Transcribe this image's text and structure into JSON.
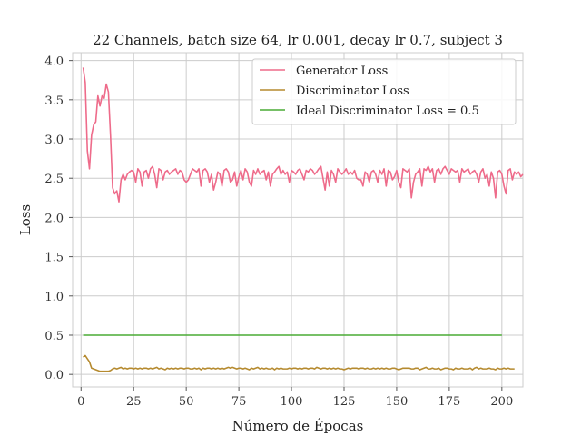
{
  "chart_data": {
    "type": "line",
    "title": "22 Channels, batch size 64, lr 0.001, decay lr 0.7, subject 3",
    "xlabel": "Número de Épocas",
    "ylabel": "Loss",
    "xlim": [
      -4,
      210
    ],
    "ylim": [
      -0.16,
      4.1
    ],
    "xticks": [
      0,
      25,
      50,
      75,
      100,
      125,
      150,
      175,
      200
    ],
    "yticks": [
      0.0,
      0.5,
      1.0,
      1.5,
      2.0,
      2.5,
      3.0,
      3.5,
      4.0
    ],
    "xtick_labels": [
      "0",
      "25",
      "50",
      "75",
      "100",
      "125",
      "150",
      "175",
      "200"
    ],
    "ytick_labels": [
      "0.0",
      "0.5",
      "1.0",
      "1.5",
      "2.0",
      "2.5",
      "3.0",
      "3.5",
      "4.0"
    ],
    "grid": true,
    "legend_position": "top-right",
    "series": [
      {
        "name": "Generator Loss",
        "color": "#ee6b8a",
        "x_start": 1,
        "values": [
          3.91,
          3.72,
          2.85,
          2.62,
          3.05,
          3.18,
          3.22,
          3.55,
          3.42,
          3.55,
          3.52,
          3.7,
          3.6,
          3.05,
          2.38,
          2.3,
          2.34,
          2.2,
          2.48,
          2.55,
          2.48,
          2.55,
          2.58,
          2.6,
          2.58,
          2.45,
          2.62,
          2.58,
          2.4,
          2.58,
          2.6,
          2.5,
          2.62,
          2.65,
          2.55,
          2.38,
          2.62,
          2.6,
          2.48,
          2.58,
          2.6,
          2.55,
          2.58,
          2.6,
          2.62,
          2.55,
          2.6,
          2.58,
          2.48,
          2.45,
          2.48,
          2.55,
          2.62,
          2.6,
          2.58,
          2.62,
          2.4,
          2.6,
          2.62,
          2.58,
          2.45,
          2.55,
          2.35,
          2.45,
          2.58,
          2.55,
          2.4,
          2.6,
          2.62,
          2.58,
          2.45,
          2.48,
          2.58,
          2.4,
          2.52,
          2.6,
          2.48,
          2.62,
          2.58,
          2.45,
          2.4,
          2.6,
          2.55,
          2.62,
          2.55,
          2.58,
          2.6,
          2.48,
          2.58,
          2.4,
          2.55,
          2.58,
          2.62,
          2.65,
          2.55,
          2.6,
          2.55,
          2.58,
          2.45,
          2.6,
          2.58,
          2.55,
          2.6,
          2.62,
          2.55,
          2.48,
          2.6,
          2.58,
          2.62,
          2.6,
          2.55,
          2.58,
          2.62,
          2.65,
          2.5,
          2.35,
          2.58,
          2.4,
          2.6,
          2.55,
          2.45,
          2.62,
          2.58,
          2.55,
          2.58,
          2.62,
          2.55,
          2.58,
          2.55,
          2.6,
          2.5,
          2.48,
          2.48,
          2.4,
          2.58,
          2.55,
          2.45,
          2.58,
          2.6,
          2.55,
          2.45,
          2.6,
          2.55,
          2.62,
          2.4,
          2.6,
          2.58,
          2.48,
          2.52,
          2.6,
          2.45,
          2.38,
          2.62,
          2.6,
          2.58,
          2.62,
          2.25,
          2.45,
          2.55,
          2.58,
          2.62,
          2.4,
          2.62,
          2.6,
          2.65,
          2.58,
          2.62,
          2.45,
          2.6,
          2.62,
          2.55,
          2.62,
          2.65,
          2.6,
          2.55,
          2.62,
          2.6,
          2.58,
          2.6,
          2.45,
          2.62,
          2.58,
          2.6,
          2.62,
          2.55,
          2.58,
          2.6,
          2.55,
          2.45,
          2.58,
          2.62,
          2.5,
          2.55,
          2.4,
          2.58,
          2.5,
          2.25,
          2.58,
          2.6,
          2.55,
          2.4,
          2.3,
          2.6,
          2.62,
          2.48,
          2.58,
          2.55,
          2.58,
          2.52,
          2.55
        ]
      },
      {
        "name": "Discriminator Loss",
        "color": "#b58a2f",
        "x_start": 1,
        "values": [
          0.22,
          0.24,
          0.2,
          0.16,
          0.08,
          0.07,
          0.06,
          0.05,
          0.04,
          0.04,
          0.04,
          0.04,
          0.04,
          0.05,
          0.07,
          0.08,
          0.07,
          0.08,
          0.09,
          0.07,
          0.08,
          0.07,
          0.08,
          0.08,
          0.07,
          0.08,
          0.07,
          0.08,
          0.07,
          0.08,
          0.08,
          0.07,
          0.08,
          0.07,
          0.08,
          0.09,
          0.07,
          0.08,
          0.07,
          0.06,
          0.08,
          0.07,
          0.08,
          0.07,
          0.08,
          0.07,
          0.08,
          0.08,
          0.07,
          0.08,
          0.08,
          0.07,
          0.07,
          0.08,
          0.07,
          0.08,
          0.06,
          0.08,
          0.07,
          0.08,
          0.08,
          0.07,
          0.08,
          0.07,
          0.08,
          0.07,
          0.08,
          0.07,
          0.08,
          0.09,
          0.08,
          0.09,
          0.08,
          0.07,
          0.08,
          0.08,
          0.07,
          0.08,
          0.07,
          0.06,
          0.08,
          0.07,
          0.08,
          0.09,
          0.07,
          0.08,
          0.07,
          0.08,
          0.07,
          0.07,
          0.08,
          0.06,
          0.08,
          0.07,
          0.08,
          0.07,
          0.07,
          0.07,
          0.08,
          0.07,
          0.08,
          0.08,
          0.07,
          0.08,
          0.07,
          0.08,
          0.08,
          0.07,
          0.08,
          0.08,
          0.07,
          0.09,
          0.08,
          0.07,
          0.08,
          0.08,
          0.07,
          0.08,
          0.07,
          0.08,
          0.07,
          0.08,
          0.07,
          0.07,
          0.06,
          0.07,
          0.08,
          0.07,
          0.08,
          0.08,
          0.08,
          0.07,
          0.08,
          0.08,
          0.07,
          0.08,
          0.07,
          0.07,
          0.08,
          0.07,
          0.08,
          0.07,
          0.08,
          0.07,
          0.08,
          0.07,
          0.07,
          0.08,
          0.08,
          0.07,
          0.06,
          0.07,
          0.08,
          0.08,
          0.08,
          0.08,
          0.07,
          0.07,
          0.08,
          0.08,
          0.06,
          0.07,
          0.08,
          0.09,
          0.07,
          0.07,
          0.08,
          0.07,
          0.07,
          0.08,
          0.06,
          0.07,
          0.08,
          0.08,
          0.07,
          0.07,
          0.06,
          0.08,
          0.07,
          0.07,
          0.08,
          0.07,
          0.07,
          0.07,
          0.08,
          0.06,
          0.08,
          0.09,
          0.07,
          0.08,
          0.07,
          0.07,
          0.07,
          0.08,
          0.07,
          0.07,
          0.06,
          0.08,
          0.07,
          0.07,
          0.08,
          0.07,
          0.08,
          0.07,
          0.07,
          0.07
        ]
      },
      {
        "name": "Ideal Discriminator Loss = 0.5",
        "color": "#4aab35",
        "x": [
          1,
          200
        ],
        "values": [
          0.5,
          0.5
        ]
      }
    ]
  }
}
